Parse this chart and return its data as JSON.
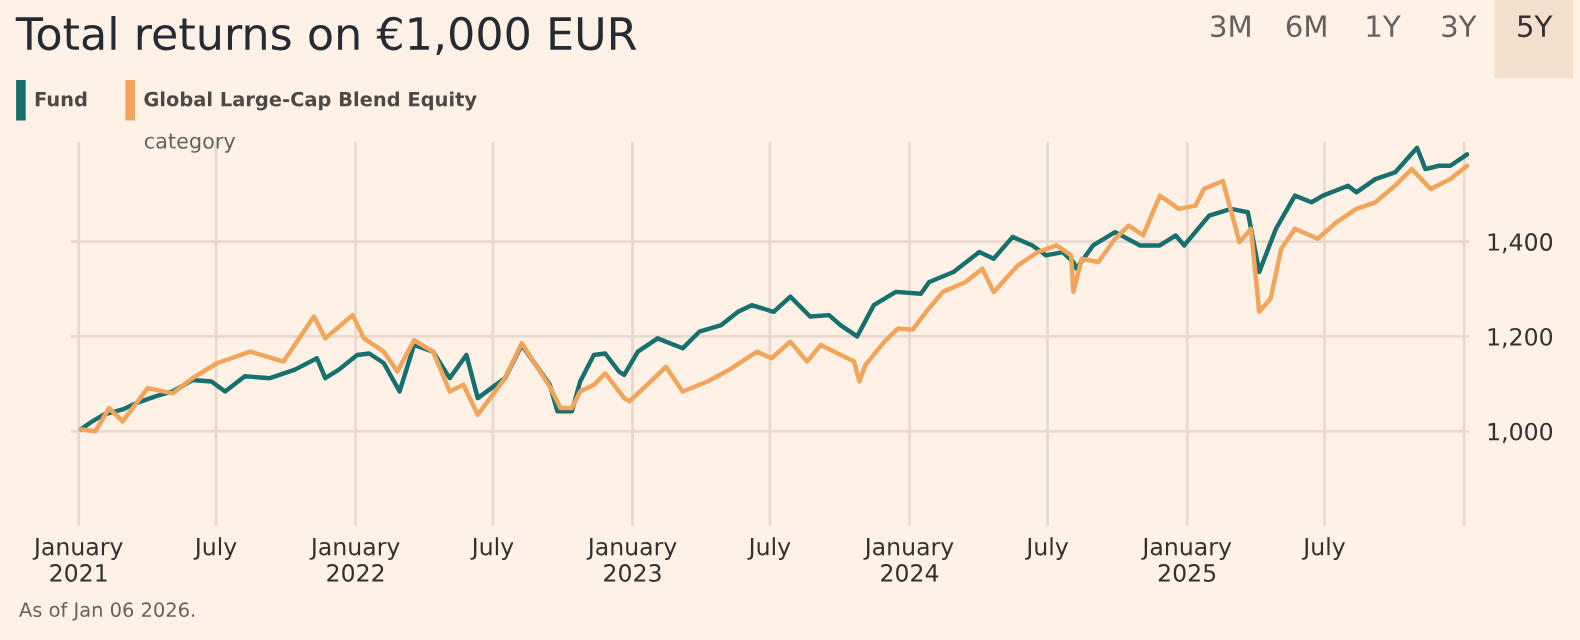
{
  "chart_data": {
    "type": "line",
    "title": "Total returns on €1,000 EUR",
    "annotations": [
      "As of Jan 06 2026.",
      "category",
      "3M",
      "6M",
      "1Y",
      "3Y",
      "5Y"
    ],
    "xlim": [
      "2020-12-22",
      "2026-01-08"
    ],
    "xticks": [
      {
        "value": "2021-01-01",
        "label": "January\n2021"
      },
      {
        "value": "2021-07-01",
        "label": "July"
      },
      {
        "value": "2022-01-01",
        "label": "January\n2022"
      },
      {
        "value": "2022-07-01",
        "label": "July"
      },
      {
        "value": "2023-01-01",
        "label": "January\n2023"
      },
      {
        "value": "2023-07-01",
        "label": "July"
      },
      {
        "value": "2024-01-01",
        "label": "January\n2024"
      },
      {
        "value": "2024-07-01",
        "label": "July"
      },
      {
        "value": "2025-01-01",
        "label": "January\n2025"
      },
      {
        "value": "2025-07-01",
        "label": "July"
      },
      {
        "value": "2026-01-01",
        "label": null
      }
    ],
    "ylim": [
      800,
      1610
    ],
    "yticks": [
      {
        "value": 1000,
        "label": "1,000"
      },
      {
        "value": 1200,
        "label": "1,200"
      },
      {
        "value": 1400,
        "label": "1,400"
      }
    ],
    "grid": true,
    "legend": "top left",
    "series": [
      {
        "name": "Fund",
        "color": "#17706e",
        "x": [
          "2021-01-04",
          "2021-01-19",
          "2021-02-03",
          "2021-02-28",
          "2021-03-19",
          "2021-04-13",
          "2021-05-05",
          "2021-05-31",
          "2021-06-25",
          "2021-07-13",
          "2021-08-08",
          "2021-09-10",
          "2021-10-13",
          "2021-11-11",
          "2021-11-22",
          "2021-12-10",
          "2022-01-03",
          "2022-01-19",
          "2022-02-07",
          "2022-02-28",
          "2022-03-19",
          "2022-04-13",
          "2022-05-05",
          "2022-05-27",
          "2022-06-11",
          "2022-07-17",
          "2022-08-08",
          "2022-09-14",
          "2022-09-24",
          "2022-10-13",
          "2022-10-24",
          "2022-11-11",
          "2022-11-26",
          "2022-12-14",
          "2022-12-21",
          "2023-01-08",
          "2023-02-03",
          "2023-03-08",
          "2023-03-30",
          "2023-04-28",
          "2023-05-20",
          "2023-06-07",
          "2023-07-06",
          "2023-07-28",
          "2023-08-23",
          "2023-09-17",
          "2023-10-02",
          "2023-10-24",
          "2023-11-15",
          "2023-12-14",
          "2024-01-16",
          "2024-01-27",
          "2024-02-28",
          "2024-04-02",
          "2024-04-21",
          "2024-05-16",
          "2024-06-11",
          "2024-06-29",
          "2024-07-21",
          "2024-08-04",
          "2024-08-08",
          "2024-08-30",
          "2024-09-28",
          "2024-10-31",
          "2024-11-26",
          "2024-12-17",
          "2024-12-28",
          "2025-01-30",
          "2025-02-28",
          "2025-03-22",
          "2025-04-06",
          "2025-04-28",
          "2025-05-23",
          "2025-06-14",
          "2025-06-29",
          "2025-08-01",
          "2025-08-12",
          "2025-09-06",
          "2025-10-02",
          "2025-10-31",
          "2025-11-11",
          "2025-11-29",
          "2025-12-14",
          "2026-01-05"
        ],
        "values": [
          1004,
          1021,
          1035,
          1046,
          1060,
          1074,
          1084,
          1108,
          1105,
          1084,
          1116,
          1112,
          1130,
          1154,
          1112,
          1130,
          1161,
          1164,
          1144,
          1084,
          1182,
          1168,
          1112,
          1161,
          1070,
          1112,
          1182,
          1098,
          1042,
          1042,
          1105,
          1161,
          1164,
          1126,
          1119,
          1168,
          1196,
          1175,
          1210,
          1224,
          1252,
          1266,
          1252,
          1284,
          1242,
          1245,
          1224,
          1200,
          1266,
          1294,
          1290,
          1315,
          1336,
          1378,
          1364,
          1410,
          1392,
          1371,
          1378,
          1357,
          1343,
          1392,
          1420,
          1392,
          1392,
          1413,
          1392,
          1455,
          1469,
          1462,
          1336,
          1427,
          1497,
          1483,
          1497,
          1518,
          1504,
          1532,
          1546,
          1598,
          1553,
          1560,
          1560,
          1584
        ]
      },
      {
        "name": "Global Large-Cap Blend Equity",
        "color": "#f2a45b",
        "x": [
          "2021-01-04",
          "2021-01-23",
          "2021-02-10",
          "2021-02-28",
          "2021-04-02",
          "2021-05-05",
          "2021-05-31",
          "2021-07-03",
          "2021-08-15",
          "2021-09-28",
          "2021-11-07",
          "2021-11-22",
          "2021-12-28",
          "2022-01-12",
          "2022-02-07",
          "2022-02-25",
          "2022-03-19",
          "2022-04-13",
          "2022-05-05",
          "2022-05-23",
          "2022-06-11",
          "2022-07-17",
          "2022-08-08",
          "2022-09-14",
          "2022-09-28",
          "2022-10-13",
          "2022-10-24",
          "2022-11-11",
          "2022-11-26",
          "2022-12-21",
          "2022-12-28",
          "2023-02-03",
          "2023-02-14",
          "2023-03-08",
          "2023-04-10",
          "2023-05-12",
          "2023-06-14",
          "2023-07-03",
          "2023-07-28",
          "2023-08-19",
          "2023-09-06",
          "2023-10-20",
          "2023-10-27",
          "2023-11-04",
          "2023-11-29",
          "2023-12-17",
          "2024-01-05",
          "2024-01-23",
          "2024-02-14",
          "2024-03-15",
          "2024-04-06",
          "2024-04-21",
          "2024-05-23",
          "2024-06-18",
          "2024-07-13",
          "2024-08-01",
          "2024-08-04",
          "2024-08-15",
          "2024-09-06",
          "2024-09-28",
          "2024-10-16",
          "2024-11-04",
          "2024-11-26",
          "2024-12-21",
          "2025-01-12",
          "2025-01-23",
          "2025-02-17",
          "2025-03-11",
          "2025-03-26",
          "2025-04-06",
          "2025-04-21",
          "2025-05-05",
          "2025-05-23",
          "2025-06-22",
          "2025-07-17",
          "2025-08-12",
          "2025-09-06",
          "2025-10-02",
          "2025-10-24",
          "2025-11-18",
          "2025-12-14",
          "2026-01-05"
        ],
        "values": [
          1004,
          1000,
          1049,
          1021,
          1091,
          1080,
          1112,
          1144,
          1168,
          1147,
          1242,
          1196,
          1245,
          1196,
          1168,
          1126,
          1192,
          1168,
          1084,
          1098,
          1035,
          1112,
          1186,
          1094,
          1049,
          1049,
          1084,
          1098,
          1122,
          1070,
          1063,
          1119,
          1136,
          1084,
          1105,
          1133,
          1168,
          1154,
          1189,
          1147,
          1182,
          1147,
          1105,
          1140,
          1189,
          1217,
          1214,
          1252,
          1294,
          1315,
          1343,
          1294,
          1350,
          1378,
          1392,
          1371,
          1294,
          1364,
          1357,
          1406,
          1434,
          1413,
          1497,
          1469,
          1476,
          1511,
          1528,
          1399,
          1427,
          1252,
          1280,
          1385,
          1427,
          1406,
          1441,
          1469,
          1483,
          1518,
          1553,
          1511,
          1532,
          1560
        ]
      }
    ]
  }
}
